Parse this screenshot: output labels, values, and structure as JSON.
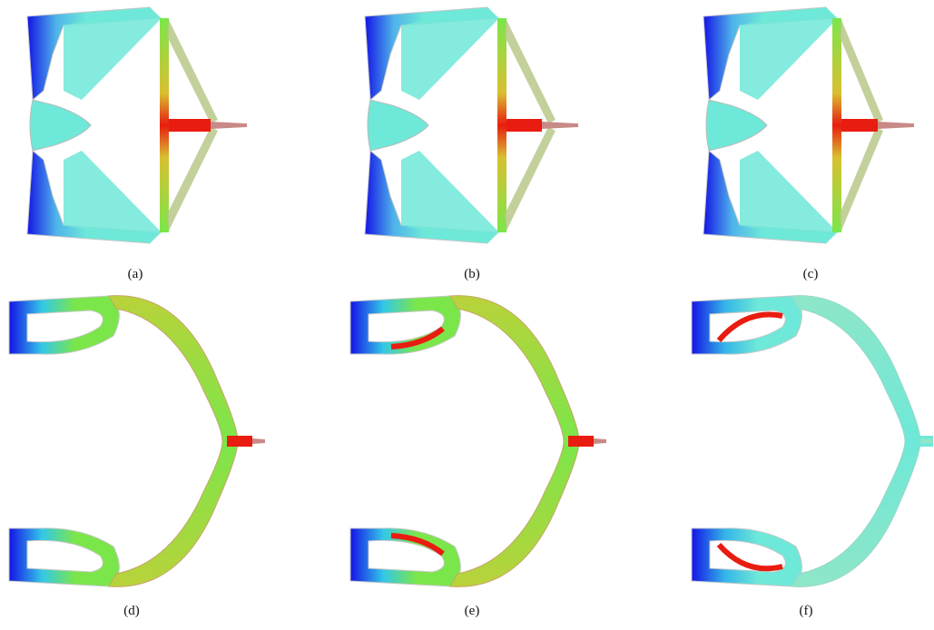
{
  "figure": {
    "colors": {
      "blue": "#1414e6",
      "cyan": "#6ee8d8",
      "green": "#7be64a",
      "red": "#e81c10",
      "mauve": "#c88a86"
    },
    "top_row": [
      {
        "caption": "(a)",
        "vertical_bar": "green-red",
        "spike": "red"
      },
      {
        "caption": "(b)",
        "vertical_bar": "green-red",
        "spike": "red"
      },
      {
        "caption": "(c)",
        "vertical_bar": "green-red",
        "spike": "red"
      }
    ],
    "bottom_row": [
      {
        "caption": "(d)",
        "arc": "green",
        "loop_inner": "green",
        "spike": "red"
      },
      {
        "caption": "(e)",
        "arc": "green",
        "loop_inner": "red",
        "spike": "red"
      },
      {
        "caption": "(f)",
        "arc": "cyan",
        "loop_inner": "red",
        "spike": "cyan"
      }
    ]
  }
}
